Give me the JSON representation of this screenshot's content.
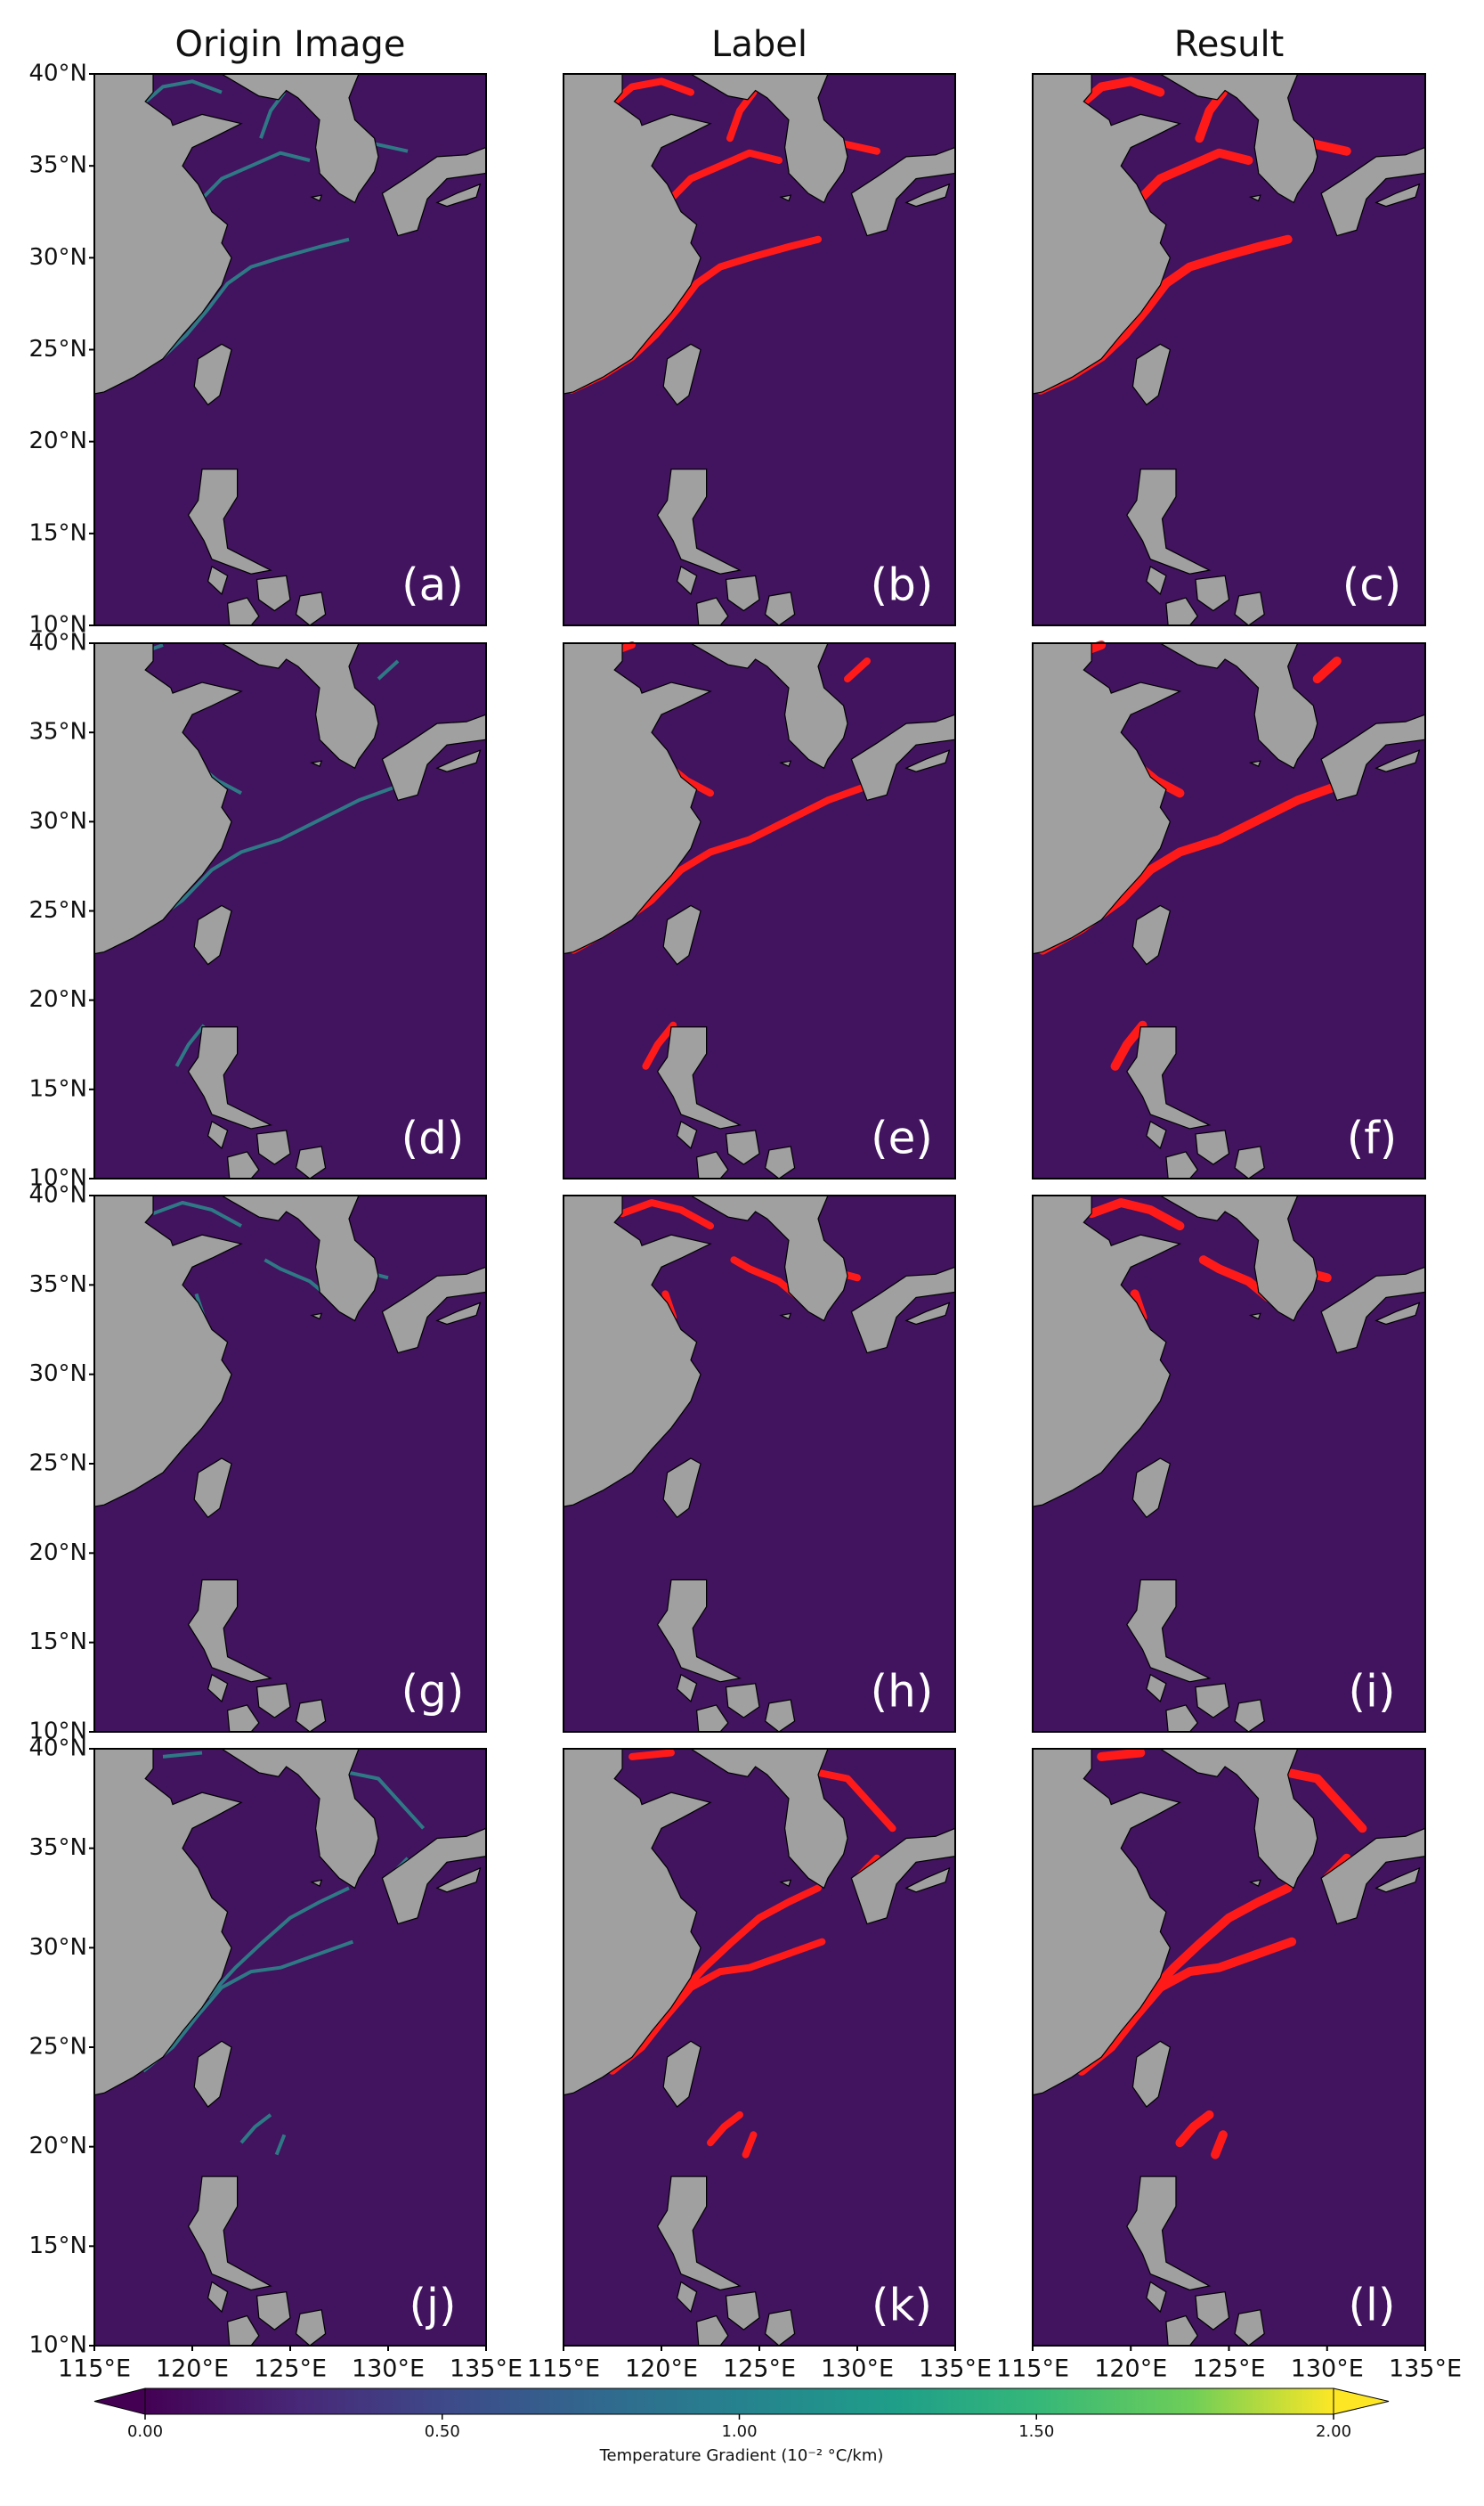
{
  "columns": [
    "Origin Image",
    "Label",
    "Result"
  ],
  "panels": [
    "(a)",
    "(b)",
    "(c)",
    "(d)",
    "(e)",
    "(f)",
    "(g)",
    "(h)",
    "(i)",
    "(j)",
    "(k)",
    "(l)"
  ],
  "lat_ticks": [
    {
      "value": 40,
      "label": "40°N"
    },
    {
      "value": 35,
      "label": "35°N"
    },
    {
      "value": 30,
      "label": "30°N"
    },
    {
      "value": 25,
      "label": "25°N"
    },
    {
      "value": 20,
      "label": "20°N"
    },
    {
      "value": 15,
      "label": "15°N"
    },
    {
      "value": 10,
      "label": "10°N"
    }
  ],
  "lon_ticks": [
    {
      "value": 115,
      "label": "115°E"
    },
    {
      "value": 120,
      "label": "120°E"
    },
    {
      "value": 125,
      "label": "125°E"
    },
    {
      "value": 130,
      "label": "130°E"
    },
    {
      "value": 135,
      "label": "135°E"
    }
  ],
  "colorbar": {
    "lim": [
      0,
      2
    ],
    "ticks": [
      {
        "value": 0,
        "label": "0.00"
      },
      {
        "value": 0.5,
        "label": "0.50"
      },
      {
        "value": 1,
        "label": "1.00"
      },
      {
        "value": 1.5,
        "label": "1.50"
      },
      {
        "value": 2,
        "label": "2.00"
      }
    ],
    "label": "Temperature Gradient (10⁻² °C/km)"
  }
}
